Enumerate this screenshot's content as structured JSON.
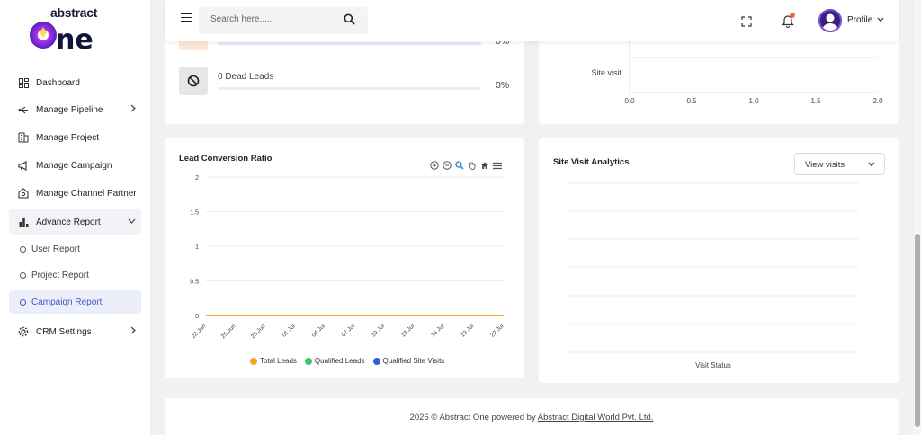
{
  "brand": {
    "top": "abstract",
    "bottom": "one"
  },
  "sidebar": {
    "items": [
      {
        "label": "Dashboard",
        "icon": "dashboard-icon"
      },
      {
        "label": "Manage Pipeline",
        "icon": "pipeline-icon",
        "chevron": "right"
      },
      {
        "label": "Manage Project",
        "icon": "building-icon"
      },
      {
        "label": "Manage Campaign",
        "icon": "megaphone-icon"
      },
      {
        "label": "Manage Channel Partner",
        "icon": "partner-icon"
      },
      {
        "label": "Advance Report",
        "icon": "bar-chart-icon",
        "chevron": "down",
        "expanded": true
      },
      {
        "label": "CRM Settings",
        "icon": "gear-icon",
        "chevron": "right"
      }
    ],
    "sub_items": [
      {
        "label": "User Report"
      },
      {
        "label": "Project Report"
      },
      {
        "label": "Campaign Report",
        "active": true
      }
    ]
  },
  "header": {
    "search_placeholder": "Search here.....",
    "profile_label": "Profile"
  },
  "leads": {
    "top_percent": "0%",
    "dead_label": "0 Dead Leads",
    "dead_percent": "0%"
  },
  "site_visit_bar": {
    "category": "Site visit",
    "x_ticks": [
      "0.0",
      "0.5",
      "1.0",
      "1.5",
      "2.0"
    ]
  },
  "conversion": {
    "title": "Lead Conversion Ratio",
    "legend": [
      {
        "name": "Total Leads",
        "color": "#f5a623"
      },
      {
        "name": "Qualified Leads",
        "color": "#3cc46a"
      },
      {
        "name": "Qualified Site Visits",
        "color": "#2f5fd6"
      }
    ]
  },
  "visits": {
    "title": "Site Visit Analytics",
    "select_value": "View visits",
    "xlabel": "Visit Status"
  },
  "footer": {
    "text": "2026 © Abstract One powered by ",
    "link": "Abstract Digital World Pvt. Ltd."
  },
  "colors": {
    "accent": "#4a57c8",
    "line": "#f5a623",
    "brand_purple": "#5b2bd6"
  },
  "chart_data": [
    {
      "type": "line",
      "title": "Lead Conversion Ratio",
      "x": [
        "22 Jun",
        "25 Jun",
        "28 Jun",
        "01 Jul",
        "04 Jul",
        "07 Jul",
        "10 Jul",
        "13 Jul",
        "16 Jul",
        "19 Jul",
        "22 Jul"
      ],
      "y_ticks": [
        "0",
        "0.5",
        "1",
        "1.5",
        "2"
      ],
      "ylim": [
        0,
        2
      ],
      "series": [
        {
          "name": "Total Leads",
          "values": [
            0,
            0,
            0,
            0,
            0,
            0,
            0,
            0,
            0,
            0,
            0
          ]
        },
        {
          "name": "Qualified Leads",
          "values": [
            0,
            0,
            0,
            0,
            0,
            0,
            0,
            0,
            0,
            0,
            0
          ]
        },
        {
          "name": "Qualified Site Visits",
          "values": [
            0,
            0,
            0,
            0,
            0,
            0,
            0,
            0,
            0,
            0,
            0
          ]
        }
      ],
      "legend": "bottom",
      "grid": true
    },
    {
      "type": "bar",
      "categories": [
        "Site visit"
      ],
      "values": [
        0
      ],
      "xlim": [
        0,
        2
      ],
      "orientation": "horizontal"
    },
    {
      "type": "bar",
      "title": "Site Visit Analytics",
      "xlabel": "Visit Status",
      "categories": [],
      "values": [],
      "grid": true
    }
  ]
}
